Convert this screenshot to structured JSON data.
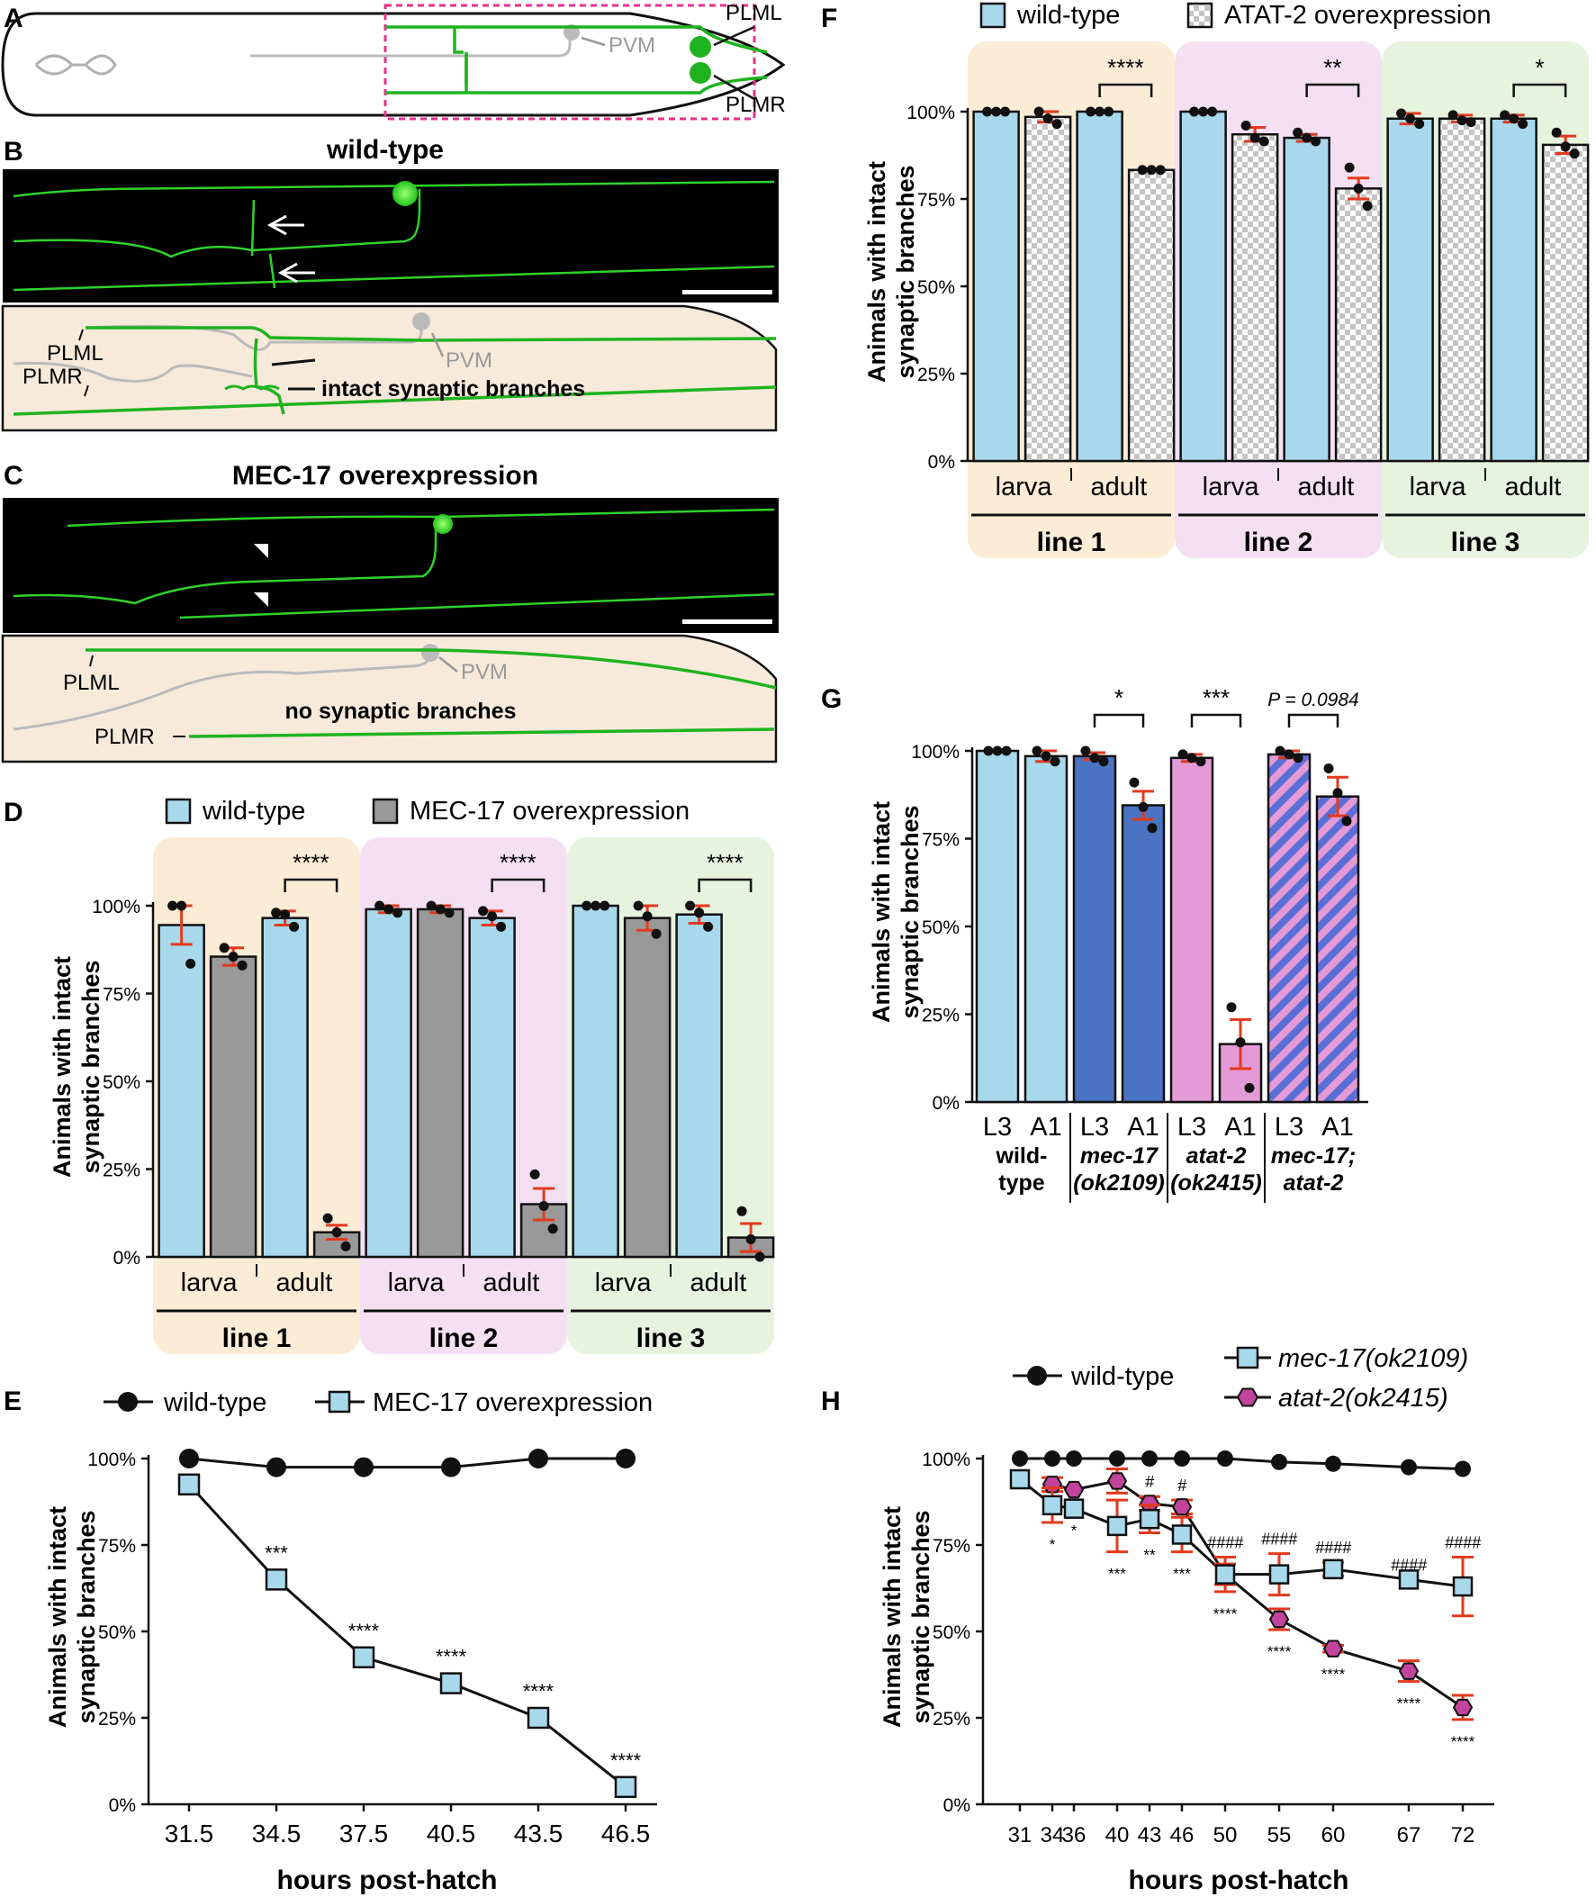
{
  "colors": {
    "wt": "#a8d8ec",
    "mec": "#999999",
    "dkblue": "#4a73c1",
    "pink": "#e49ad6",
    "mag": "#c2439c",
    "err": "#e23a1d",
    "green": "#1fb31f",
    "grey": "#bbbbbb",
    "sh1": "#fbecd6",
    "sh2": "#f4dff3",
    "sh3": "#e6f4df",
    "cream": "#f7eadb"
  },
  "panels": {
    "A": {
      "letter": "A",
      "plml": "PLML",
      "plmr": "PLMR",
      "pvm": "PVM"
    },
    "B": {
      "letter": "B",
      "title": "wild-type",
      "plml": "PLML",
      "plmr": "PLMR",
      "pvm": "PVM",
      "note": "intact synaptic branches"
    },
    "C": {
      "letter": "C",
      "title": "MEC-17 overexpression",
      "plml": "PLML",
      "plmr": "PLMR",
      "pvm": "PVM",
      "note": "no synaptic branches"
    },
    "D": {
      "letter": "D"
    },
    "E": {
      "letter": "E"
    },
    "F": {
      "letter": "F"
    },
    "G": {
      "letter": "G"
    },
    "H": {
      "letter": "H"
    }
  },
  "chart_data": [
    {
      "id": "D",
      "type": "bar",
      "ylabel": [
        "Animals with intact",
        "synaptic branches"
      ],
      "ylim": [
        0,
        100
      ],
      "yticks": [
        "0%",
        "25%",
        "50%",
        "75%",
        "100%"
      ],
      "legend": [
        "wild-type",
        "MEC-17 overexpression"
      ],
      "groups": [
        "line 1",
        "line 2",
        "line 3"
      ],
      "stages": [
        "larva",
        "adult"
      ],
      "bars": [
        {
          "g": 0,
          "series": "wild-type",
          "mean": 94.5,
          "err": 5.5,
          "points": [
            100,
            100,
            83.5
          ]
        },
        {
          "g": 0,
          "series": "MEC-17 overexpression",
          "mean": 85.5,
          "err": 2.5,
          "points": [
            88,
            85.5,
            83
          ]
        },
        {
          "g": 0,
          "series": "wild-type",
          "mean": 96.5,
          "err": 2,
          "points": [
            98,
            97.5,
            94
          ]
        },
        {
          "g": 0,
          "series": "MEC-17 overexpression",
          "mean": 7,
          "err": 2,
          "points": [
            11,
            7,
            3
          ]
        },
        {
          "g": 1,
          "series": "wild-type",
          "mean": 99,
          "err": 1,
          "points": [
            100,
            99,
            98
          ]
        },
        {
          "g": 1,
          "series": "MEC-17 overexpression",
          "mean": 99,
          "err": 1,
          "points": [
            100,
            99,
            98
          ]
        },
        {
          "g": 1,
          "series": "wild-type",
          "mean": 96.5,
          "err": 2,
          "points": [
            98.5,
            97,
            94
          ]
        },
        {
          "g": 1,
          "series": "MEC-17 overexpression",
          "mean": 15,
          "err": 4.5,
          "points": [
            23.5,
            14.5,
            8
          ]
        },
        {
          "g": 2,
          "series": "wild-type",
          "mean": 100,
          "err": 0,
          "points": [
            100,
            100,
            100
          ]
        },
        {
          "g": 2,
          "series": "MEC-17 overexpression",
          "mean": 96.5,
          "err": 3.5,
          "points": [
            100,
            97,
            92
          ]
        },
        {
          "g": 2,
          "series": "wild-type",
          "mean": 97.5,
          "err": 2.5,
          "points": [
            100,
            98,
            94
          ]
        },
        {
          "g": 2,
          "series": "MEC-17 overexpression",
          "mean": 5.5,
          "err": 4,
          "points": [
            13,
            5,
            0
          ]
        }
      ],
      "sig": [
        "****",
        "****",
        "****"
      ]
    },
    {
      "id": "E",
      "type": "line",
      "ylabel": [
        "Animals with intact",
        "synaptic branches"
      ],
      "xlabel": "hours post-hatch",
      "ylim": [
        0,
        100
      ],
      "yticks": [
        "0%",
        "25%",
        "50%",
        "75%",
        "100%"
      ],
      "x": [
        31.5,
        34.5,
        37.5,
        40.5,
        43.5,
        46.5
      ],
      "xticklabels": [
        "31.5",
        "34.5",
        "37.5",
        "40.5",
        "43.5",
        "46.5"
      ],
      "series": [
        {
          "name": "wild-type",
          "values": [
            100,
            97.5,
            97.5,
            97.5,
            100,
            100
          ]
        },
        {
          "name": "MEC-17 overexpression",
          "values": [
            92.5,
            65,
            42.5,
            35,
            25,
            5
          ]
        }
      ],
      "annotations": [
        "",
        "***",
        "****",
        "****",
        "****",
        "****"
      ]
    },
    {
      "id": "F",
      "type": "bar",
      "ylabel": [
        "Animals with intact",
        "synaptic branches"
      ],
      "ylim": [
        0,
        100
      ],
      "yticks": [
        "0%",
        "25%",
        "50%",
        "75%",
        "100%"
      ],
      "legend": [
        "wild-type",
        "ATAT-2 overexpression"
      ],
      "groups": [
        "line 1",
        "line 2",
        "line 3"
      ],
      "stages": [
        "larva",
        "adult"
      ],
      "bars": [
        {
          "g": 0,
          "series": "wild-type",
          "mean": 100,
          "err": 0,
          "points": [
            100,
            100,
            100
          ]
        },
        {
          "g": 0,
          "series": "ATAT-2 overexpression",
          "mean": 98.5,
          "err": 1.5,
          "points": [
            100,
            98,
            96.5
          ]
        },
        {
          "g": 0,
          "series": "wild-type",
          "mean": 100,
          "err": 0,
          "points": [
            100,
            100,
            100
          ]
        },
        {
          "g": 0,
          "series": "ATAT-2 overexpression",
          "mean": 83.3,
          "err": 0,
          "points": [
            83.3,
            83.3,
            83.3
          ]
        },
        {
          "g": 1,
          "series": "wild-type",
          "mean": 100,
          "err": 0,
          "points": [
            100,
            100,
            100
          ]
        },
        {
          "g": 1,
          "series": "ATAT-2 overexpression",
          "mean": 93.5,
          "err": 2,
          "points": [
            96,
            92.5,
            91.5
          ]
        },
        {
          "g": 1,
          "series": "wild-type",
          "mean": 92.5,
          "err": 1,
          "points": [
            94,
            92.5,
            91.5
          ]
        },
        {
          "g": 1,
          "series": "ATAT-2 overexpression",
          "mean": 78,
          "err": 3,
          "points": [
            84,
            78,
            73
          ]
        },
        {
          "g": 2,
          "series": "wild-type",
          "mean": 98,
          "err": 1.5,
          "points": [
            99.5,
            98,
            96.5
          ]
        },
        {
          "g": 2,
          "series": "ATAT-2 overexpression",
          "mean": 98,
          "err": 1,
          "points": [
            99,
            97.5,
            97
          ]
        },
        {
          "g": 2,
          "series": "wild-type",
          "mean": 98,
          "err": 1,
          "points": [
            99,
            98,
            96.5
          ]
        },
        {
          "g": 2,
          "series": "ATAT-2 overexpression",
          "mean": 90.5,
          "err": 2.5,
          "points": [
            94,
            90,
            88
          ]
        }
      ],
      "sig": [
        "****",
        "**",
        "*"
      ]
    },
    {
      "id": "G",
      "type": "bar",
      "ylabel": [
        "Animals with intact",
        "synaptic branches"
      ],
      "ylim": [
        0,
        100
      ],
      "yticks": [
        "0%",
        "25%",
        "50%",
        "75%",
        "100%"
      ],
      "categories": [
        "L3",
        "A1",
        "L3",
        "A1",
        "L3",
        "A1",
        "L3",
        "A1"
      ],
      "genotypes": [
        [
          "wild-",
          "type"
        ],
        [
          "mec-17",
          "(ok2109)"
        ],
        [
          "atat-2",
          "(ok2415)"
        ],
        [
          "mec-17;",
          "atat-2"
        ]
      ],
      "bars": [
        {
          "style": "wt",
          "mean": 100,
          "err": 0,
          "points": [
            100,
            100,
            100
          ]
        },
        {
          "style": "wt",
          "mean": 98.5,
          "err": 1.5,
          "points": [
            100,
            98.5,
            97
          ]
        },
        {
          "style": "dkblue",
          "mean": 98.5,
          "err": 1,
          "points": [
            100,
            98,
            97
          ]
        },
        {
          "style": "dkblue",
          "mean": 84.5,
          "err": 4,
          "points": [
            91,
            84,
            78
          ]
        },
        {
          "style": "pink",
          "mean": 98,
          "err": 1,
          "points": [
            99,
            98,
            97
          ]
        },
        {
          "style": "pink",
          "mean": 16.5,
          "err": 7,
          "points": [
            27,
            17,
            4
          ]
        },
        {
          "style": "stripe",
          "mean": 99,
          "err": 1,
          "points": [
            100,
            99,
            98
          ]
        },
        {
          "style": "stripe",
          "mean": 87,
          "err": 5.5,
          "points": [
            95,
            88,
            80
          ]
        }
      ],
      "sig": [
        "*",
        "***",
        "P = 0.0984"
      ]
    },
    {
      "id": "H",
      "type": "line",
      "ylabel": [
        "Animals with intact",
        "synaptic branches"
      ],
      "xlabel": "hours post-hatch",
      "ylim": [
        0,
        100
      ],
      "yticks": [
        "0%",
        "25%",
        "50%",
        "75%",
        "100%"
      ],
      "x": [
        31,
        34,
        36,
        40,
        43,
        46,
        50,
        55,
        60,
        67,
        72
      ],
      "xticklabels": [
        "31",
        "34",
        "36",
        "40",
        "43",
        "46",
        "50",
        "55",
        "60",
        "67",
        "72"
      ],
      "series": [
        {
          "name": "wild-type",
          "x": [
            31,
            34,
            36,
            40,
            43,
            46,
            50,
            55,
            60,
            67,
            72
          ],
          "values": [
            100,
            100,
            100,
            100,
            100,
            100,
            100,
            99,
            98.5,
            97.5,
            97
          ]
        },
        {
          "name": "mec-17(ok2109)",
          "x": [
            31,
            34,
            36,
            40,
            43,
            46,
            50,
            55,
            60,
            67,
            72
          ],
          "values": [
            94,
            86.5,
            85.5,
            80.5,
            82.5,
            78,
            66.5,
            66.5,
            68,
            65,
            63
          ],
          "err": [
            0,
            5,
            0,
            7.5,
            4,
            5,
            5,
            6,
            2,
            0,
            8.5
          ]
        },
        {
          "name": "atat-2(ok2415)",
          "x": [
            34,
            36,
            40,
            43,
            46,
            50,
            55,
            60,
            67,
            72
          ],
          "values": [
            92.5,
            91,
            93.5,
            87,
            86,
            66.5,
            53.5,
            45,
            38.5,
            28
          ],
          "err": [
            2,
            0,
            3.5,
            2,
            2,
            3,
            3,
            1,
            3,
            3.5
          ]
        }
      ],
      "mecAnn": [
        "",
        "*",
        "*",
        "***",
        "**",
        "***",
        "****",
        "",
        "",
        "",
        ""
      ],
      "atatAnn": [
        "",
        "",
        "",
        "",
        "",
        "",
        "",
        "****",
        "****",
        "****",
        "****"
      ],
      "hashAnn": [
        "",
        "",
        "",
        "",
        "#",
        "#",
        "####",
        "####",
        "####",
        "####",
        "####"
      ]
    }
  ]
}
